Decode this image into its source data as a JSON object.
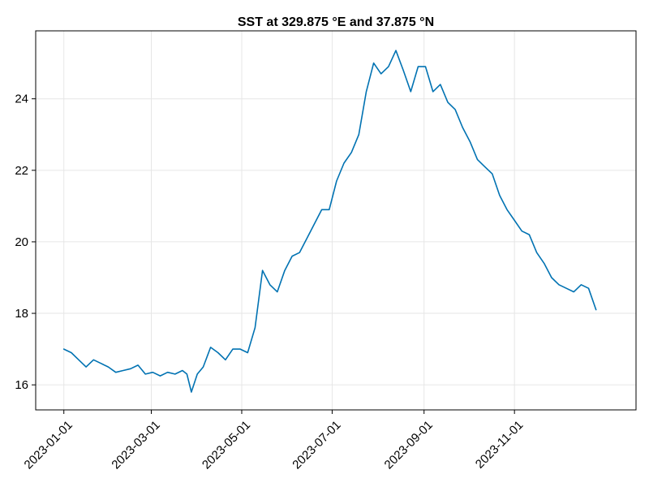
{
  "chart_data": {
    "type": "line",
    "title": "SST at 329.875 °E and 37.875 °N",
    "xlabel": "",
    "ylabel": "",
    "x_ticks": [
      "2023-01-01",
      "2023-03-01",
      "2023-05-01",
      "2023-07-01",
      "2023-09-01",
      "2023-11-01"
    ],
    "y_ticks": [
      16,
      18,
      20,
      22,
      24
    ],
    "xlim": [
      "2022-12-13",
      "2024-01-22"
    ],
    "ylim": [
      15.3,
      25.9
    ],
    "grid": true,
    "line_color": "#0072b2",
    "series": [
      {
        "x": [
          "2023-01-01",
          "2023-01-06",
          "2023-01-11",
          "2023-01-16",
          "2023-01-21",
          "2023-01-26",
          "2023-01-31",
          "2023-02-05",
          "2023-02-10",
          "2023-02-15",
          "2023-02-20",
          "2023-02-25",
          "2023-03-02",
          "2023-03-07",
          "2023-03-12",
          "2023-03-17",
          "2023-03-22",
          "2023-03-25",
          "2023-03-28",
          "2023-04-01",
          "2023-04-05",
          "2023-04-10",
          "2023-04-15",
          "2023-04-20",
          "2023-04-25",
          "2023-04-30",
          "2023-05-05",
          "2023-05-10",
          "2023-05-15",
          "2023-05-20",
          "2023-05-25",
          "2023-05-30",
          "2023-06-04",
          "2023-06-09",
          "2023-06-14",
          "2023-06-19",
          "2023-06-24",
          "2023-06-29",
          "2023-07-04",
          "2023-07-09",
          "2023-07-14",
          "2023-07-19",
          "2023-07-24",
          "2023-07-29",
          "2023-08-03",
          "2023-08-08",
          "2023-08-13",
          "2023-08-18",
          "2023-08-23",
          "2023-08-28",
          "2023-09-02",
          "2023-09-07",
          "2023-09-12",
          "2023-09-17",
          "2023-09-22",
          "2023-09-27",
          "2023-10-02",
          "2023-10-07",
          "2023-10-12",
          "2023-10-17",
          "2023-10-22",
          "2023-10-27",
          "2023-11-01",
          "2023-11-06",
          "2023-11-11",
          "2023-11-16",
          "2023-11-21",
          "2023-11-26",
          "2023-12-01",
          "2023-12-06",
          "2023-12-11",
          "2023-12-16",
          "2023-12-21",
          "2023-12-26"
        ],
        "values": [
          17.0,
          16.9,
          16.7,
          16.5,
          16.7,
          16.6,
          16.5,
          16.35,
          16.4,
          16.45,
          16.55,
          16.3,
          16.35,
          16.25,
          16.35,
          16.3,
          16.4,
          16.3,
          15.8,
          16.3,
          16.5,
          17.05,
          16.9,
          16.7,
          17.0,
          17.0,
          16.9,
          17.6,
          19.2,
          18.8,
          18.6,
          19.2,
          19.6,
          19.7,
          20.1,
          20.5,
          20.9,
          20.9,
          21.7,
          22.2,
          22.5,
          23.0,
          24.2,
          25.0,
          24.7,
          24.9,
          25.35,
          24.8,
          24.2,
          24.9,
          24.9,
          24.2,
          24.4,
          23.9,
          23.7,
          23.2,
          22.8,
          22.3,
          22.1,
          21.9,
          21.3,
          20.9,
          20.6,
          20.3,
          20.2,
          19.7,
          19.4,
          19.0,
          18.8,
          18.7,
          18.6,
          18.8,
          18.7,
          18.1
        ]
      }
    ]
  }
}
